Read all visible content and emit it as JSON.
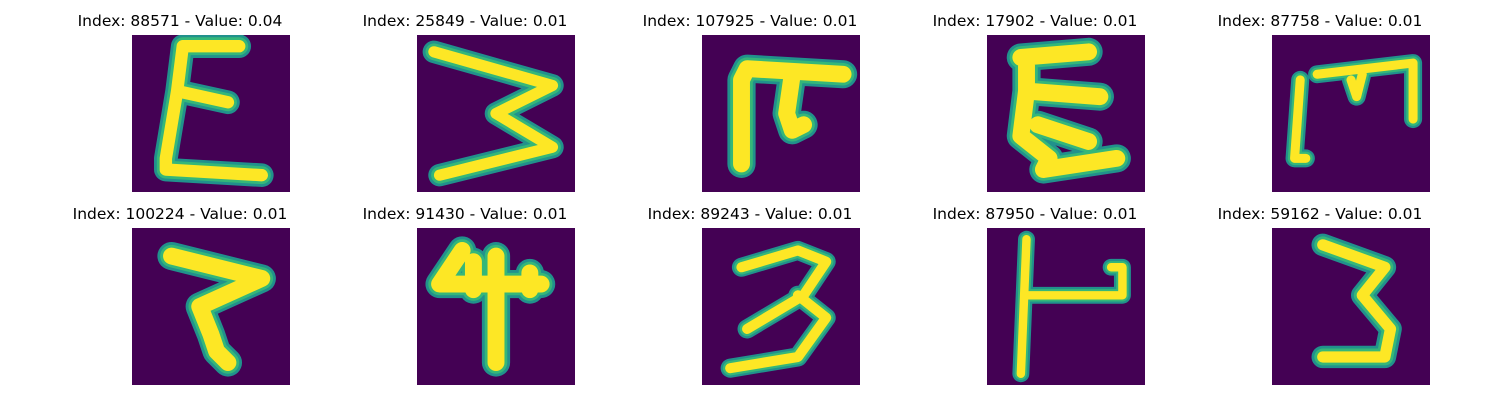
{
  "colors": {
    "background": "#440154",
    "stroke_core": "#fde725",
    "stroke_edge": "#35b779",
    "stroke_halo": "#21918c"
  },
  "panels": [
    {
      "title": "Index: 88571 - Value: 0.04",
      "glyph": "epsilon-tall"
    },
    {
      "title": "Index: 25849 - Value: 0.01",
      "glyph": "sideways-m"
    },
    {
      "title": "Index: 107925 - Value: 0.01",
      "glyph": "pi-like"
    },
    {
      "title": "Index: 17902 - Value: 0.01",
      "glyph": "epsilon-hook"
    },
    {
      "title": "Index: 87758 - Value: 0.01",
      "glyph": "bracket-m"
    },
    {
      "title": "Index: 100224 - Value: 0.01",
      "glyph": "z-curve"
    },
    {
      "title": "Index: 91430 - Value: 0.01",
      "glyph": "four-like"
    },
    {
      "title": "Index: 89243 - Value: 0.01",
      "glyph": "three-wide"
    },
    {
      "title": "Index: 87950 - Value: 0.01",
      "glyph": "h-like"
    },
    {
      "title": "Index: 59162 - Value: 0.01",
      "glyph": "three-tall"
    }
  ]
}
